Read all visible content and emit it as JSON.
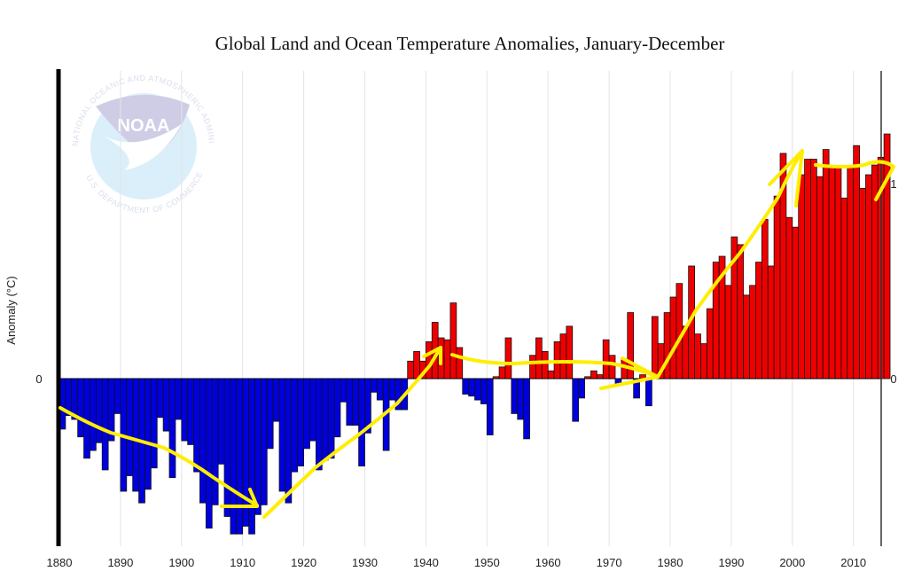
{
  "chart_data": {
    "type": "bar",
    "title": "Global Land and Ocean Temperature Anomalies, January-December",
    "xlabel": "",
    "ylabel": "Anomaly (°C)",
    "x_ticks": [
      "1880",
      "1890",
      "1900",
      "1910",
      "1920",
      "1930",
      "1940",
      "1950",
      "1960",
      "1970",
      "1980",
      "1990",
      "2000",
      "2010"
    ],
    "y_ticks_left": [
      "0"
    ],
    "y_ticks_right": [
      "0",
      "1"
    ],
    "xlim": [
      1880,
      2015
    ],
    "ylim": [
      -0.85,
      1.6
    ],
    "grid": "vertical",
    "colors": {
      "positive": "#ee0000",
      "negative": "#0000dd",
      "annotation": "#ffee00"
    },
    "years_start": 1880,
    "values": [
      -0.26,
      -0.19,
      -0.21,
      -0.3,
      -0.41,
      -0.37,
      -0.33,
      -0.47,
      -0.32,
      -0.18,
      -0.58,
      -0.5,
      -0.58,
      -0.64,
      -0.57,
      -0.46,
      -0.2,
      -0.27,
      -0.51,
      -0.21,
      -0.32,
      -0.34,
      -0.48,
      -0.64,
      -0.77,
      -0.65,
      -0.44,
      -0.71,
      -0.8,
      -0.8,
      -0.76,
      -0.8,
      -0.7,
      -0.65,
      -0.36,
      -0.22,
      -0.58,
      -0.64,
      -0.48,
      -0.45,
      -0.36,
      -0.32,
      -0.47,
      -0.42,
      -0.41,
      -0.3,
      -0.12,
      -0.24,
      -0.24,
      -0.45,
      -0.28,
      -0.07,
      -0.11,
      -0.37,
      -0.11,
      -0.16,
      -0.16,
      0.09,
      0.14,
      0.09,
      0.19,
      0.29,
      0.21,
      0.2,
      0.39,
      0.16,
      -0.08,
      -0.09,
      -0.11,
      -0.13,
      -0.29,
      0.01,
      0.06,
      0.21,
      -0.18,
      -0.21,
      -0.31,
      0.12,
      0.21,
      0.14,
      0.04,
      0.19,
      0.23,
      0.27,
      -0.22,
      -0.1,
      0.01,
      0.04,
      0.02,
      0.2,
      0.12,
      -0.03,
      0.1,
      0.34,
      -0.1,
      0.02,
      -0.14,
      0.32,
      0.18,
      0.34,
      0.42,
      0.49,
      0.27,
      0.58,
      0.23,
      0.18,
      0.36,
      0.6,
      0.63,
      0.48,
      0.73,
      0.69,
      0.43,
      0.48,
      0.6,
      0.82,
      0.58,
      0.94,
      1.16,
      0.83,
      0.78,
      1.05,
      1.13,
      1.13,
      1.04,
      1.18,
      1.09,
      1.09,
      0.93,
      1.09,
      1.2,
      0.98,
      1.05,
      1.1,
      1.14,
      1.26
    ]
  },
  "watermark": {
    "logo_text": "NOAA",
    "ring_top": "NATIONAL OCEANIC AND ATMOSPHERIC ADMINISTRATION",
    "ring_bottom": "U.S. DEPARTMENT OF COMMERCE"
  }
}
